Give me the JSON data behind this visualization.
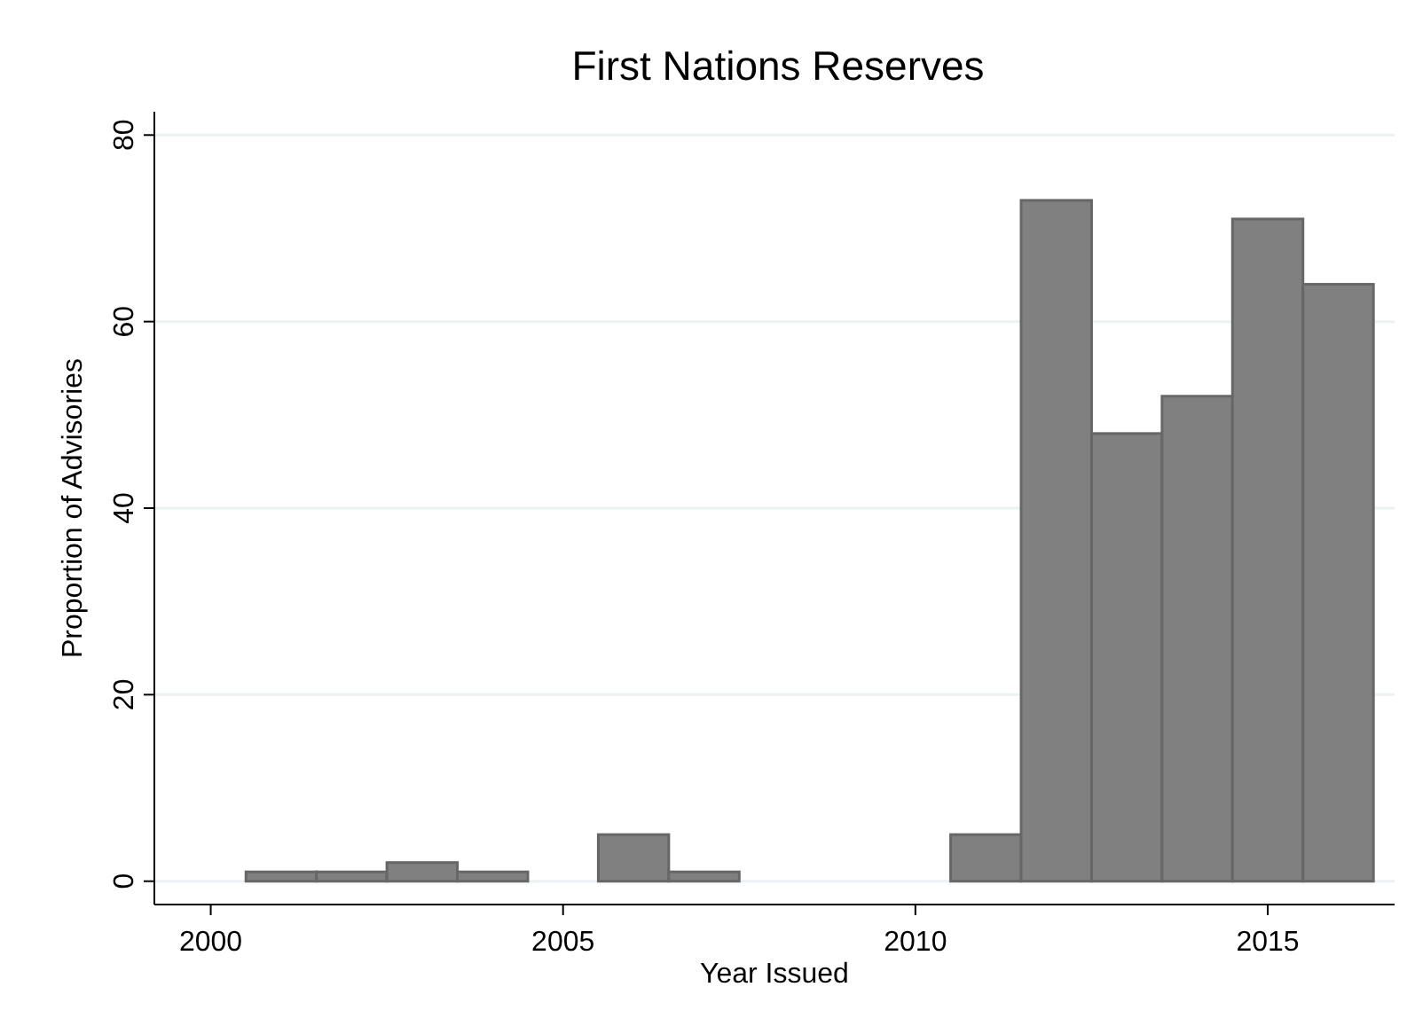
{
  "chart_data": {
    "type": "histogram",
    "title": "First Nations Reserves",
    "xlabel": "Year Issued",
    "ylabel": "Proportion of Advisories",
    "bins": [
      2000.5,
      2001.5,
      2002.5,
      2003.5,
      2004.5,
      2005.5,
      2006.5,
      2007.5,
      2008.5,
      2009.5,
      2010.5,
      2011.5,
      2012.5,
      2013.5,
      2014.5,
      2015.5,
      2016.5
    ],
    "values": [
      1,
      1,
      2,
      1,
      0,
      5,
      1,
      0,
      0,
      0,
      5,
      73,
      48,
      52,
      71,
      64
    ],
    "color": "#808080",
    "xlim": [
      1999.2,
      2016.8
    ],
    "xticks": [
      2000,
      2005,
      2010,
      2015
    ],
    "ylim": [
      -2.5,
      82.5
    ],
    "yticks": [
      0,
      20,
      40,
      60,
      80
    ],
    "grid": "y"
  }
}
